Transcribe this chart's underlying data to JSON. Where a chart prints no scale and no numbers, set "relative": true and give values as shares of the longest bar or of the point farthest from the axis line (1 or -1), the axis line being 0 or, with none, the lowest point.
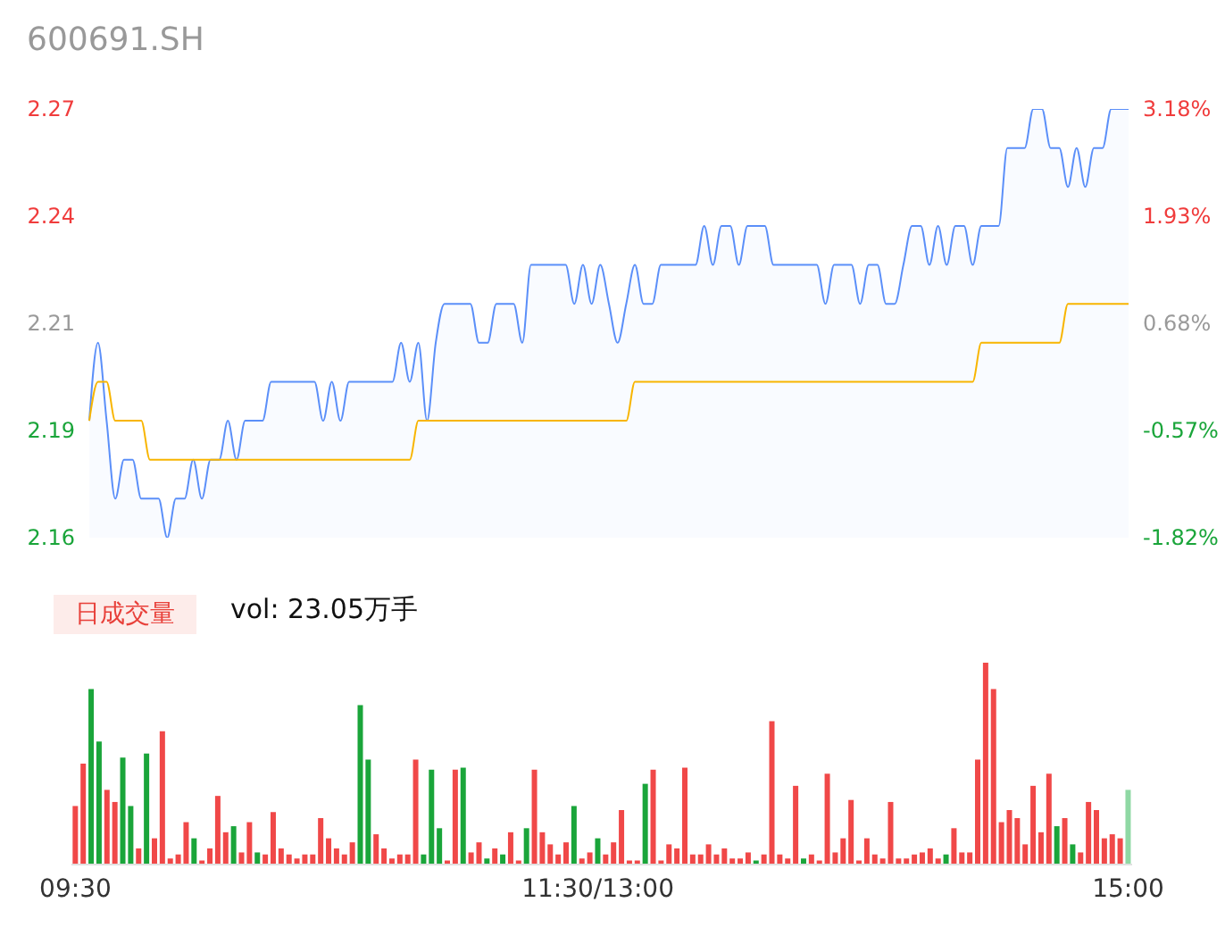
{
  "chart_data": [
    {
      "type": "line",
      "title": "600691.SH",
      "tick_labels": "y",
      "categories": [
        null,
        null,
        null,
        null,
        null,
        null,
        null,
        null,
        null,
        null,
        null,
        null,
        null,
        null,
        null,
        null,
        null,
        null,
        null,
        null,
        null,
        null,
        null,
        null,
        null,
        null,
        null,
        null,
        null,
        null,
        null,
        null,
        null,
        null,
        null,
        null,
        null,
        null,
        null,
        null,
        null,
        null,
        null,
        null,
        null,
        null,
        null,
        null,
        null,
        null,
        null,
        null,
        null,
        null,
        null,
        null,
        null,
        null,
        null,
        null,
        null,
        null,
        null,
        null,
        null,
        null,
        null,
        null,
        null,
        null,
        null,
        null,
        null,
        null,
        null,
        null,
        null,
        null,
        null,
        null,
        null,
        null,
        null,
        null,
        null,
        null,
        null,
        null,
        null,
        null,
        null,
        null,
        null,
        null,
        null,
        null,
        null,
        null,
        null,
        null,
        null,
        null,
        null,
        null,
        null,
        null,
        null,
        null,
        null,
        null,
        null,
        null,
        null,
        null,
        null,
        null,
        null,
        null,
        null,
        null,
        null
      ],
      "series": [
        {
          "type": "area",
          "color": "#5b8ff9",
          "values": [
            2.19,
            2.21,
            2.19,
            2.17,
            2.18,
            2.18,
            2.17,
            2.17,
            2.17,
            2.16,
            2.17,
            2.17,
            2.18,
            2.17,
            2.18,
            2.18,
            2.19,
            2.18,
            2.19,
            2.19,
            2.19,
            2.2,
            2.2,
            2.2,
            2.2,
            2.2,
            2.2,
            2.19,
            2.2,
            2.19,
            2.2,
            2.2,
            2.2,
            2.2,
            2.2,
            2.2,
            2.21,
            2.2,
            2.21,
            2.19,
            2.21,
            2.22,
            2.22,
            2.22,
            2.22,
            2.21,
            2.21,
            2.22,
            2.22,
            2.22,
            2.21,
            2.23,
            2.23,
            2.23,
            2.23,
            2.23,
            2.22,
            2.23,
            2.22,
            2.23,
            2.22,
            2.21,
            2.22,
            2.23,
            2.22,
            2.22,
            2.23,
            2.23,
            2.23,
            2.23,
            2.23,
            2.24,
            2.23,
            2.24,
            2.24,
            2.23,
            2.24,
            2.24,
            2.24,
            2.23,
            2.23,
            2.23,
            2.23,
            2.23,
            2.23,
            2.22,
            2.23,
            2.23,
            2.23,
            2.22,
            2.23,
            2.23,
            2.22,
            2.22,
            2.23,
            2.24,
            2.24,
            2.23,
            2.24,
            2.23,
            2.24,
            2.24,
            2.23,
            2.24,
            2.24,
            2.24,
            2.26,
            2.26,
            2.26,
            2.27,
            2.27,
            2.26,
            2.26,
            2.25,
            2.26,
            2.25,
            2.26,
            2.26,
            2.27,
            2.27,
            2.27
          ]
        },
        {
          "type": "line",
          "color": "#f8b500",
          "values": [
            2.19,
            2.2,
            2.2,
            2.19,
            2.19,
            2.19,
            2.19,
            2.18,
            2.18,
            2.18,
            2.18,
            2.18,
            2.18,
            2.18,
            2.18,
            2.18,
            2.18,
            2.18,
            2.18,
            2.18,
            2.18,
            2.18,
            2.18,
            2.18,
            2.18,
            2.18,
            2.18,
            2.18,
            2.18,
            2.18,
            2.18,
            2.18,
            2.18,
            2.18,
            2.18,
            2.18,
            2.18,
            2.18,
            2.19,
            2.19,
            2.19,
            2.19,
            2.19,
            2.19,
            2.19,
            2.19,
            2.19,
            2.19,
            2.19,
            2.19,
            2.19,
            2.19,
            2.19,
            2.19,
            2.19,
            2.19,
            2.19,
            2.19,
            2.19,
            2.19,
            2.19,
            2.19,
            2.19,
            2.2,
            2.2,
            2.2,
            2.2,
            2.2,
            2.2,
            2.2,
            2.2,
            2.2,
            2.2,
            2.2,
            2.2,
            2.2,
            2.2,
            2.2,
            2.2,
            2.2,
            2.2,
            2.2,
            2.2,
            2.2,
            2.2,
            2.2,
            2.2,
            2.2,
            2.2,
            2.2,
            2.2,
            2.2,
            2.2,
            2.2,
            2.2,
            2.2,
            2.2,
            2.2,
            2.2,
            2.2,
            2.2,
            2.2,
            2.2,
            2.21,
            2.21,
            2.21,
            2.21,
            2.21,
            2.21,
            2.21,
            2.21,
            2.21,
            2.21,
            2.22,
            2.22,
            2.22,
            2.22,
            2.22,
            2.22,
            2.22,
            2.22
          ]
        }
      ],
      "ylim": [
        2.16,
        2.27
      ],
      "yticks": [
        2.16,
        {
          "value": 2.1875,
          "label": "2.19"
        },
        {
          "value": 2.215,
          "label": "2.21"
        },
        {
          "value": 2.2425,
          "label": "2.24"
        },
        2.27
      ],
      "y2lim": [
        -1.82,
        3.18
      ],
      "y2ticks": [
        {
          "value": -1.82,
          "label": "-1.82%"
        },
        {
          "value": -0.57,
          "label": "-0.57%"
        },
        {
          "value": 0.68,
          "label": "0.68%"
        },
        {
          "value": 1.93,
          "label": "1.93%"
        },
        {
          "value": 3.18,
          "label": "3.18%"
        }
      ]
    },
    {
      "type": "bar",
      "relative": true,
      "annotations": [
        "日成交量",
        "vol: 23.05万手"
      ],
      "categories": [
        "09:30",
        null,
        null,
        null,
        null,
        null,
        null,
        null,
        null,
        null,
        null,
        null,
        null,
        null,
        null,
        null,
        null,
        null,
        null,
        null,
        null,
        null,
        null,
        null,
        null,
        null,
        null,
        null,
        null,
        null,
        null,
        null,
        null,
        null,
        null,
        null,
        null,
        null,
        null,
        null,
        null,
        null,
        null,
        null,
        null,
        null,
        null,
        null,
        null,
        null,
        null,
        null,
        null,
        null,
        null,
        null,
        null,
        null,
        null,
        null,
        null,
        null,
        null,
        null,
        null,
        null,
        "11:30/13:00",
        null,
        null,
        null,
        null,
        null,
        null,
        null,
        null,
        null,
        null,
        null,
        null,
        null,
        null,
        null,
        null,
        null,
        null,
        null,
        null,
        null,
        null,
        null,
        null,
        null,
        null,
        null,
        null,
        null,
        null,
        null,
        null,
        null,
        null,
        null,
        null,
        null,
        null,
        null,
        null,
        null,
        null,
        null,
        null,
        null,
        null,
        null,
        null,
        null,
        null,
        null,
        null,
        null,
        null,
        null,
        null,
        null,
        null,
        null,
        null,
        null,
        null,
        null,
        null,
        null,
        null,
        "15:00"
      ],
      "values": [
        0.29,
        0.5,
        0.87,
        0.61,
        0.37,
        0.31,
        0.53,
        0.29,
        0.08,
        0.55,
        0.13,
        0.66,
        0.03,
        0.05,
        0.21,
        0.13,
        0.02,
        0.08,
        0.34,
        0.16,
        0.19,
        0.06,
        0.21,
        0.06,
        0.05,
        0.26,
        0.08,
        0.05,
        0.03,
        0.05,
        0.05,
        0.23,
        0.13,
        0.08,
        0.05,
        0.11,
        0.79,
        0.52,
        0.15,
        0.08,
        0.03,
        0.05,
        0.05,
        0.52,
        0.05,
        0.47,
        0.18,
        0.02,
        0.47,
        0.48,
        0.06,
        0.11,
        0.03,
        0.08,
        0.05,
        0.16,
        0.02,
        0.18,
        0.47,
        0.16,
        0.1,
        0.05,
        0.11,
        0.29,
        0.03,
        0.06,
        0.13,
        0.05,
        0.11,
        0.27,
        0.02,
        0.02,
        0.4,
        0.47,
        0.02,
        0.1,
        0.08,
        0.48,
        0.05,
        0.05,
        0.1,
        0.05,
        0.08,
        0.03,
        0.03,
        0.06,
        0.02,
        0.05,
        0.71,
        0.05,
        0.03,
        0.39,
        0.03,
        0.05,
        0.02,
        0.45,
        0.06,
        0.13,
        0.32,
        0.02,
        0.13,
        0.05,
        0.03,
        0.31,
        0.03,
        0.03,
        0.05,
        0.06,
        0.08,
        0.03,
        0.05,
        0.18,
        0.06,
        0.06,
        0.52,
        1,
        0.87,
        0.21,
        0.27,
        0.23,
        0.1,
        0.39,
        0.16,
        0.45,
        0.19,
        0.23,
        0.1,
        0.06,
        0.31,
        0.27,
        0.13,
        0.15,
        0.13,
        0.37
      ],
      "colors": [
        "#f04848",
        "#f04848",
        "#1aa53a",
        "#1aa53a",
        "#f04848",
        "#f04848",
        "#1aa53a",
        "#1aa53a",
        "#f04848",
        "#1aa53a",
        "#f04848",
        "#f04848",
        "#f04848",
        "#f04848",
        "#f04848",
        "#1aa53a",
        "#f04848",
        "#f04848",
        "#f04848",
        "#f04848",
        "#1aa53a",
        "#f04848",
        "#f04848",
        "#1aa53a",
        "#f04848",
        "#f04848",
        "#f04848",
        "#f04848",
        "#f04848",
        "#f04848",
        "#f04848",
        "#f04848",
        "#f04848",
        "#f04848",
        "#f04848",
        "#f04848",
        "#1aa53a",
        "#1aa53a",
        "#f04848",
        "#f04848",
        "#f04848",
        "#f04848",
        "#f04848",
        "#f04848",
        "#1aa53a",
        "#1aa53a",
        "#1aa53a",
        "#f04848",
        "#f04848",
        "#1aa53a",
        "#f04848",
        "#f04848",
        "#1aa53a",
        "#f04848",
        "#1aa53a",
        "#f04848",
        "#f04848",
        "#1aa53a",
        "#f04848",
        "#f04848",
        "#f04848",
        "#f04848",
        "#f04848",
        "#1aa53a",
        "#f04848",
        "#f04848",
        "#1aa53a",
        "#f04848",
        "#f04848",
        "#f04848",
        "#f04848",
        "#f04848",
        "#1aa53a",
        "#f04848",
        "#f04848",
        "#f04848",
        "#f04848",
        "#f04848",
        "#f04848",
        "#f04848",
        "#f04848",
        "#f04848",
        "#f04848",
        "#f04848",
        "#f04848",
        "#f04848",
        "#1aa53a",
        "#f04848",
        "#f04848",
        "#f04848",
        "#f04848",
        "#f04848",
        "#1aa53a",
        "#f04848",
        "#f04848",
        "#f04848",
        "#f04848",
        "#f04848",
        "#f04848",
        "#f04848",
        "#f04848",
        "#f04848",
        "#f04848",
        "#f04848",
        "#f04848",
        "#f04848",
        "#f04848",
        "#f04848",
        "#f04848",
        "#f04848",
        "#1aa53a",
        "#f04848",
        "#f04848",
        "#f04848",
        "#f04848",
        "#f04848",
        "#f04848",
        "#f04848",
        "#f04848",
        "#f04848",
        "#f04848",
        "#f04848",
        "#f04848",
        "#f04848",
        "#1aa53a",
        "#f04848",
        "#1aa53a",
        "#f04848",
        "#f04848",
        "#f04848",
        "#f04848",
        "#f04848",
        "#f04848",
        "#8fd8a4"
      ]
    }
  ]
}
